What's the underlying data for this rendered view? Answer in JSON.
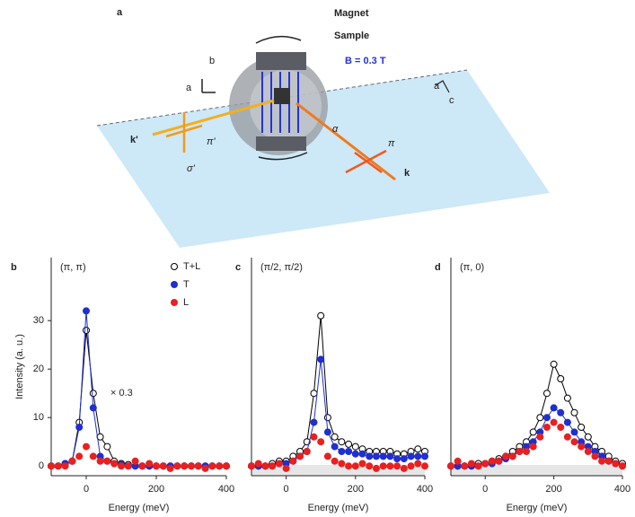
{
  "diagram": {
    "panel_label": "a",
    "magnet": "Magnet",
    "sample": "Sample",
    "field": "B = 0.3 T",
    "axis_b": "b",
    "axis_a": "a",
    "crystal_a": "a",
    "crystal_c": "c",
    "k_out": "k'",
    "pi_out": "π'",
    "sigma_out": "σ'",
    "alpha": "α",
    "pi_in": "π",
    "k_in": "k"
  },
  "chart_data": [
    {
      "type": "scatter",
      "panel_label": "b",
      "annotation": "(π, π)",
      "scale_note": "× 0.3",
      "xlabel": "Energy (meV)",
      "ylabel": "Intensity (a. u.)",
      "legend": "upper right",
      "x": [
        -100,
        -80,
        -60,
        -40,
        -20,
        0,
        20,
        40,
        60,
        80,
        100,
        120,
        140,
        160,
        180,
        200,
        220,
        240,
        260,
        280,
        300,
        320,
        340,
        360,
        380,
        400
      ],
      "xlim": [
        -100,
        400
      ],
      "xticks": [
        0,
        200,
        400
      ],
      "ylim": [
        -2,
        43
      ],
      "yticks": [
        0,
        10,
        20,
        30
      ],
      "series": [
        {
          "name": "T+L",
          "color": "#ffffff",
          "edgecolor": "#000000",
          "line": true,
          "values": [
            0,
            0,
            0.5,
            1,
            9,
            28,
            15,
            6,
            4,
            1,
            0.5,
            0.3,
            0,
            0,
            0,
            0,
            0,
            0,
            0,
            0,
            0,
            0,
            0,
            0,
            0,
            0
          ]
        },
        {
          "name": "T",
          "color": "#1f2fd0",
          "line": true,
          "values": [
            0,
            0,
            0.5,
            1,
            8,
            32,
            12,
            2,
            1,
            0.5,
            0.3,
            0,
            0,
            0,
            0,
            0,
            0,
            0,
            0,
            0,
            0,
            0,
            0,
            0,
            0,
            0
          ]
        },
        {
          "name": "L",
          "color": "#e8201f",
          "values": [
            0,
            0,
            0,
            1,
            2,
            4,
            2,
            1,
            1,
            0.5,
            0,
            0,
            1,
            0,
            0.5,
            0,
            0,
            -0.5,
            0,
            0,
            0,
            0,
            -0.5,
            0,
            0,
            0
          ]
        }
      ]
    },
    {
      "type": "scatter",
      "panel_label": "c",
      "annotation": "(π/2, π/2)",
      "xlabel": "Energy (meV)",
      "x": [
        -100,
        -80,
        -60,
        -40,
        -20,
        0,
        20,
        40,
        60,
        80,
        100,
        120,
        140,
        160,
        180,
        200,
        220,
        240,
        260,
        280,
        300,
        320,
        340,
        360,
        380,
        400
      ],
      "xlim": [
        -100,
        400
      ],
      "xticks": [
        0,
        200,
        400
      ],
      "ylim": [
        -2,
        43
      ],
      "series": [
        {
          "color": "#ffffff",
          "edgecolor": "#000000",
          "line": true,
          "values": [
            0,
            0,
            0,
            0.5,
            1,
            1,
            2,
            3,
            5,
            15,
            31,
            10,
            6,
            5,
            4.5,
            4,
            3.5,
            3,
            3,
            3,
            3,
            2.5,
            2.5,
            3,
            3.5,
            3
          ]
        },
        {
          "color": "#1f2fd0",
          "line": true,
          "values": [
            0,
            0,
            0,
            0,
            0.5,
            0.5,
            1,
            2,
            3,
            9,
            22,
            7,
            4,
            3,
            3,
            2.5,
            2.5,
            2,
            2,
            2,
            2,
            1.5,
            1.5,
            2,
            2,
            2
          ]
        },
        {
          "color": "#e8201f",
          "values": [
            0,
            0.5,
            0,
            0,
            0.5,
            -0.5,
            1,
            2,
            3,
            6,
            5,
            2,
            1,
            0.5,
            0,
            0,
            0.5,
            0,
            -0.5,
            0,
            0,
            0,
            -0.5,
            0,
            0.5,
            0
          ]
        }
      ]
    },
    {
      "type": "scatter",
      "panel_label": "d",
      "annotation": "(π, 0)",
      "xlabel": "Energy (meV)",
      "x": [
        -100,
        -80,
        -60,
        -40,
        -20,
        0,
        20,
        40,
        60,
        80,
        100,
        120,
        140,
        160,
        180,
        200,
        220,
        240,
        260,
        280,
        300,
        320,
        340,
        360,
        380,
        400
      ],
      "xlim": [
        -100,
        400
      ],
      "xticks": [
        0,
        200,
        400
      ],
      "ylim": [
        -2,
        43
      ],
      "series": [
        {
          "color": "#ffffff",
          "edgecolor": "#000000",
          "line": true,
          "values": [
            0,
            0,
            0,
            0,
            0.5,
            0.5,
            1,
            1.5,
            2,
            3,
            4,
            5,
            7,
            10,
            15,
            21,
            18,
            14,
            11,
            8,
            6,
            4,
            3,
            2,
            1,
            0.5
          ]
        },
        {
          "color": "#1f2fd0",
          "line": true,
          "values": [
            0,
            0,
            0,
            0,
            0,
            0.5,
            0.5,
            1,
            1.5,
            2,
            3,
            4,
            5,
            7,
            10,
            12,
            11,
            9,
            7,
            5,
            4,
            3,
            2,
            1,
            0.5,
            0
          ]
        },
        {
          "color": "#e8201f",
          "values": [
            0,
            1,
            0,
            0.5,
            0,
            0.5,
            1,
            1,
            2,
            2,
            3,
            3,
            4,
            6,
            8,
            9,
            8,
            6,
            5,
            4,
            3,
            2,
            1,
            1,
            0.5,
            0
          ]
        }
      ]
    }
  ]
}
